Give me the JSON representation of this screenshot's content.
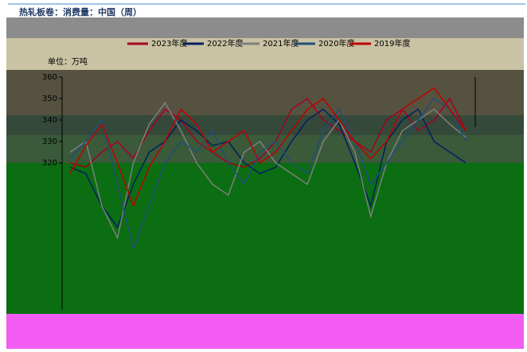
{
  "chart_data": {
    "type": "line",
    "title": "热轧板卷：消费量：中国（周）",
    "unit_label": "单位：万吨",
    "ylim": [
      250,
      360
    ],
    "yticks": [
      320,
      330,
      340,
      350,
      360
    ],
    "series": [
      {
        "name": "2023年度",
        "color": "#a50021",
        "values": [
          320,
          318,
          325,
          330,
          322,
          335,
          345,
          340,
          330,
          325,
          320,
          318,
          322,
          330,
          345,
          350,
          340,
          335,
          330,
          325,
          340,
          345,
          335,
          340,
          350,
          335
        ]
      },
      {
        "name": "2022年度",
        "color": "#002060",
        "values": [
          318,
          315,
          300,
          290,
          310,
          325,
          330,
          340,
          335,
          328,
          330,
          320,
          315,
          318,
          330,
          340,
          345,
          338,
          320,
          300,
          330,
          340,
          345,
          330,
          325,
          320
        ]
      },
      {
        "name": "2021年度",
        "color": "#7f7f7f",
        "values": [
          325,
          330,
          300,
          285,
          320,
          338,
          348,
          335,
          320,
          310,
          305,
          325,
          330,
          320,
          315,
          310,
          330,
          340,
          325,
          295,
          320,
          335,
          340,
          345,
          338,
          332
        ]
      },
      {
        "name": "2020年度",
        "color": "#1f4e79",
        "values": [
          322,
          330,
          340,
          310,
          280,
          300,
          320,
          330,
          325,
          335,
          320,
          310,
          325,
          330,
          320,
          315,
          335,
          345,
          330,
          310,
          320,
          330,
          340,
          350,
          345,
          330
        ]
      },
      {
        "name": "2019年度",
        "color": "#c00000",
        "values": [
          315,
          328,
          338,
          320,
          300,
          318,
          330,
          345,
          338,
          325,
          330,
          335,
          320,
          325,
          335,
          345,
          350,
          340,
          330,
          322,
          330,
          345,
          350,
          355,
          345,
          335
        ]
      }
    ]
  }
}
